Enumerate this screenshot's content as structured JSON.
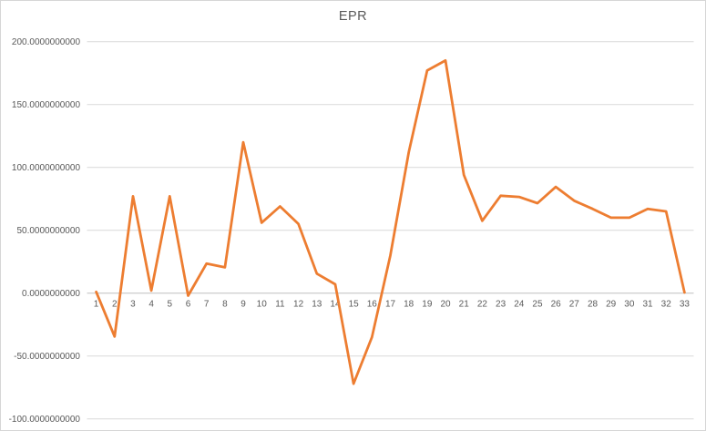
{
  "chart_data": {
    "type": "line",
    "title": "EPR",
    "series_name": "EPR",
    "categories": [
      1,
      2,
      3,
      4,
      5,
      6,
      7,
      8,
      9,
      10,
      11,
      12,
      13,
      14,
      15,
      16,
      17,
      18,
      19,
      20,
      21,
      22,
      23,
      24,
      25,
      26,
      27,
      28,
      29,
      30,
      31,
      32,
      33
    ],
    "values": [
      1,
      -34.5,
      77,
      2,
      77,
      -2,
      23.5,
      20.5,
      120,
      56,
      69,
      55,
      15.5,
      7,
      -72,
      -35,
      30,
      112,
      177,
      185,
      94,
      57.5,
      77.5,
      76.5,
      71.5,
      84.5,
      73.5,
      67,
      60,
      60,
      67,
      65,
      0.5
    ],
    "xlabel": "",
    "ylabel": "",
    "ylim": [
      -100,
      200
    ],
    "ytick_interval": 50,
    "ytick_labels": [
      "200.0000000000",
      "150.0000000000",
      "100.0000000000",
      "50.0000000000",
      "0.0000000000",
      "-50.0000000000",
      "-100.0000000000"
    ],
    "grid": true,
    "legend": "none",
    "colors": {
      "line": "#ED7D31",
      "gridline": "#D9D9D9",
      "axis_line": "#BFBFBF",
      "tick_text": "#595959",
      "title_text": "#595959",
      "background": "#FFFFFF",
      "border": "#D6D6D6"
    }
  }
}
